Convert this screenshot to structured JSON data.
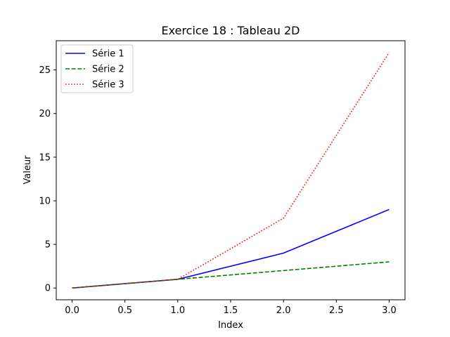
{
  "chart_data": {
    "type": "line",
    "title": "Exercice 18 : Tableau 2D",
    "xlabel": "Index",
    "ylabel": "Valeur",
    "x": [
      0,
      1,
      2,
      3
    ],
    "xlim": [
      -0.15,
      3.15
    ],
    "ylim": [
      -1.35,
      28.35
    ],
    "xticks": [
      0.0,
      0.5,
      1.0,
      1.5,
      2.0,
      2.5,
      3.0
    ],
    "xtick_labels": [
      "0.0",
      "0.5",
      "1.0",
      "1.5",
      "2.0",
      "2.5",
      "3.0"
    ],
    "yticks": [
      0,
      5,
      10,
      15,
      20,
      25
    ],
    "ytick_labels": [
      "0",
      "5",
      "10",
      "15",
      "20",
      "25"
    ],
    "grid": false,
    "legend_position": "upper-left",
    "series": [
      {
        "name": "Série 1",
        "values": [
          0,
          1,
          4,
          9
        ],
        "color": "#0000ff",
        "style": "solid"
      },
      {
        "name": "Série 2",
        "values": [
          0,
          1,
          2,
          3
        ],
        "color": "#008000",
        "style": "dashed"
      },
      {
        "name": "Série 3",
        "values": [
          0,
          1,
          8,
          27
        ],
        "color": "#ff0000",
        "style": "dotted"
      }
    ]
  }
}
